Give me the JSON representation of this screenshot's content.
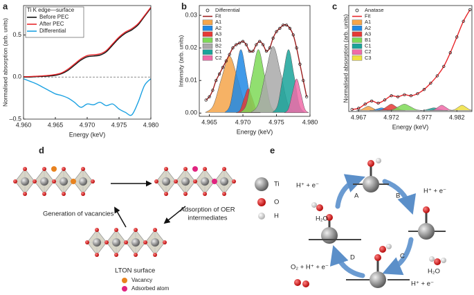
{
  "chart_data": [
    {
      "type": "line",
      "panel": "a",
      "title": "Ti K edge—surface",
      "xlabel": "Energy (keV)",
      "ylabel": "Normalised absorption (arb. units)",
      "x": [
        4.96,
        4.961,
        4.962,
        4.963,
        4.964,
        4.965,
        4.966,
        4.967,
        4.968,
        4.969,
        4.97,
        4.971,
        4.972,
        4.973,
        4.974,
        4.975,
        4.976,
        4.977,
        4.978,
        4.979,
        4.98
      ],
      "xlim": [
        4.96,
        4.98
      ],
      "xticks": [
        {
          "value": 4.96,
          "label": "4.960"
        },
        {
          "value": 4.965,
          "label": "4.965"
        },
        {
          "value": 4.97,
          "label": "4.970"
        },
        {
          "value": 4.975,
          "label": "4.975"
        },
        {
          "value": 4.98,
          "label": "4.980"
        }
      ],
      "ylim": [
        -0.5,
        0.85
      ],
      "yticks": [
        {
          "value": -0.5,
          "label": "–0.5"
        },
        {
          "value": 0,
          "label": "0.0"
        },
        0.5
      ],
      "hline": 0,
      "legend": "upper left",
      "series": [
        {
          "name": "Before PEC",
          "color": "#111111",
          "style": "line",
          "values": [
            0.0,
            0.0,
            0.005,
            0.008,
            0.012,
            0.02,
            0.04,
            0.08,
            0.14,
            0.2,
            0.24,
            0.25,
            0.26,
            0.3,
            0.38,
            0.46,
            0.52,
            0.56,
            0.62,
            0.72,
            0.82
          ]
        },
        {
          "name": "After PEC",
          "color": "#e8262a",
          "style": "line",
          "values": [
            0.005,
            0.006,
            0.01,
            0.014,
            0.02,
            0.03,
            0.05,
            0.095,
            0.155,
            0.215,
            0.255,
            0.265,
            0.275,
            0.315,
            0.395,
            0.475,
            0.535,
            0.575,
            0.635,
            0.73,
            0.83
          ]
        },
        {
          "name": "Differential",
          "color": "#1ba1e2",
          "style": "line",
          "values": [
            -0.02,
            -0.05,
            -0.08,
            -0.12,
            -0.16,
            -0.2,
            -0.22,
            -0.25,
            -0.3,
            -0.36,
            -0.32,
            -0.33,
            -0.3,
            -0.34,
            -0.32,
            -0.38,
            -0.42,
            -0.45,
            -0.3,
            -0.1,
            -0.02
          ]
        }
      ]
    },
    {
      "type": "line",
      "panel": "b",
      "xlabel": "Energy (keV)",
      "ylabel": "Intensity (arb. units)",
      "x": [
        4.9645,
        4.965,
        4.9655,
        4.966,
        4.9665,
        4.967,
        4.9675,
        4.968,
        4.9685,
        4.969,
        4.9695,
        4.97,
        4.9705,
        4.971,
        4.9715,
        4.972,
        4.9725,
        4.973,
        4.9735,
        4.974,
        4.9745,
        4.975,
        4.9755,
        4.976,
        4.9765,
        4.977,
        4.9775,
        4.978,
        4.9785,
        4.979,
        4.9795
      ],
      "xlim": [
        4.9635,
        4.98
      ],
      "xticks": [
        {
          "value": 4.965,
          "label": "4.965"
        },
        {
          "value": 4.97,
          "label": "4.970"
        },
        {
          "value": 4.975,
          "label": "4.975"
        },
        {
          "value": 4.98,
          "label": "4.980"
        }
      ],
      "ylim": [
        -0.001,
        0.033
      ],
      "yticks": [
        {
          "value": 0,
          "label": "0.00"
        },
        0.01,
        0.02,
        0.03
      ],
      "legend": "upper left",
      "series": [
        {
          "name": "Differential",
          "color": "#111111",
          "style": "markers",
          "values": [
            0.004,
            0.005,
            0.007,
            0.01,
            0.012,
            0.014,
            0.016,
            0.018,
            0.02,
            0.021,
            0.0215,
            0.022,
            0.021,
            0.019,
            0.019,
            0.021,
            0.022,
            0.021,
            0.019,
            0.02,
            0.023,
            0.025,
            0.026,
            0.027,
            0.027,
            0.026,
            0.024,
            0.02,
            0.015,
            0.01,
            0.005
          ]
        },
        {
          "name": "Fit",
          "color": "#9b1c1c",
          "style": "line",
          "values": [
            0.004,
            0.005,
            0.007,
            0.01,
            0.012,
            0.014,
            0.016,
            0.018,
            0.02,
            0.021,
            0.0215,
            0.022,
            0.021,
            0.019,
            0.019,
            0.021,
            0.022,
            0.021,
            0.019,
            0.02,
            0.023,
            0.025,
            0.026,
            0.027,
            0.027,
            0.026,
            0.024,
            0.02,
            0.015,
            0.01,
            0.005
          ]
        },
        {
          "name": "A1",
          "color": "#f5a54a",
          "style": "area",
          "x": [
            4.9644,
            4.9656,
            4.9668,
            4.968,
            4.9692,
            4.9704,
            4.9716
          ],
          "values": [
            0.0002,
            0.0024,
            0.0106,
            0.0175,
            0.0106,
            0.0024,
            0.0002
          ]
        },
        {
          "name": "A2",
          "color": "#1e88e5",
          "style": "area",
          "x": [
            4.9673,
            4.9681,
            4.9689,
            4.9697,
            4.9705,
            4.9713,
            4.9721
          ],
          "values": [
            0.0002,
            0.0026,
            0.0118,
            0.0195,
            0.0118,
            0.0026,
            0.0002
          ]
        },
        {
          "name": "A3",
          "color": "#e53935",
          "style": "area",
          "x": [
            4.969,
            4.9696,
            4.9702,
            4.9708,
            4.9714,
            4.972,
            4.9726
          ],
          "values": [
            0.0001,
            0.001,
            0.0046,
            0.0075,
            0.0046,
            0.001,
            0.0001
          ]
        },
        {
          "name": "B1",
          "color": "#7ed957",
          "style": "area",
          "x": [
            4.9696,
            4.9705,
            4.9714,
            4.9723,
            4.9732,
            4.9741,
            4.975
          ],
          "values": [
            0.0002,
            0.0026,
            0.0118,
            0.0195,
            0.0118,
            0.0026,
            0.0002
          ]
        },
        {
          "name": "B2",
          "color": "#a9a9a9",
          "style": "area",
          "x": [
            4.9712,
            4.9723,
            4.9734,
            4.9745,
            4.9756,
            4.9767,
            4.9778
          ],
          "values": [
            0.0002,
            0.0028,
            0.0124,
            0.0205,
            0.0124,
            0.0028,
            0.0002
          ]
        },
        {
          "name": "C1",
          "color": "#1aa39a",
          "style": "area",
          "x": [
            4.9744,
            4.9752,
            4.976,
            4.9768,
            4.9776,
            4.9784,
            4.9792
          ],
          "values": [
            0.0002,
            0.0026,
            0.0118,
            0.0195,
            0.0118,
            0.0026,
            0.0002
          ]
        },
        {
          "name": "C2",
          "color": "#f06ba8",
          "style": "area",
          "x": [
            4.9762,
            4.9768,
            4.9774,
            4.978,
            4.9786,
            4.9792,
            4.9798
          ],
          "values": [
            0.0001,
            0.0014,
            0.0064,
            0.0105,
            0.0064,
            0.0014,
            0.0001
          ]
        }
      ]
    },
    {
      "type": "line",
      "panel": "c",
      "xlabel": "Energy (keV)",
      "ylabel": "Normalised absorption (arb. units)",
      "x": [
        4.966,
        4.967,
        4.968,
        4.969,
        4.97,
        4.971,
        4.972,
        4.973,
        4.974,
        4.975,
        4.976,
        4.977,
        4.978,
        4.979,
        4.98,
        4.981,
        4.982,
        4.983,
        4.984
      ],
      "xlim": [
        4.9655,
        4.9843
      ],
      "xticks": [
        4.967,
        4.972,
        4.977,
        4.982
      ],
      "ylim": [
        -0.01,
        1.0
      ],
      "legend": "upper left",
      "series": [
        {
          "name": "Anatase",
          "color": "#111111",
          "style": "markers",
          "values": [
            0.01,
            0.02,
            0.06,
            0.09,
            0.07,
            0.1,
            0.14,
            0.13,
            0.15,
            0.14,
            0.16,
            0.2,
            0.26,
            0.33,
            0.42,
            0.55,
            0.7,
            0.85,
            0.96
          ]
        },
        {
          "name": "Fit",
          "color": "#e8262a",
          "style": "line",
          "values": [
            0.01,
            0.02,
            0.06,
            0.09,
            0.07,
            0.1,
            0.14,
            0.13,
            0.15,
            0.14,
            0.16,
            0.2,
            0.26,
            0.33,
            0.42,
            0.55,
            0.7,
            0.85,
            0.96
          ]
        },
        {
          "name": "A1",
          "color": "#f5a54a",
          "style": "area",
          "x": [
            4.9667,
            4.9673,
            4.9679,
            4.9685,
            4.9691,
            4.9697,
            4.9703
          ],
          "values": [
            0.0004,
            0.0054,
            0.0243,
            0.04,
            0.0243,
            0.0054,
            0.0004
          ]
        },
        {
          "name": "A2",
          "color": "#1e88e5",
          "style": "area",
          "x": [
            4.9687,
            4.9693,
            4.9699,
            4.9705,
            4.9711,
            4.9717,
            4.9723
          ],
          "values": [
            0.0003,
            0.0034,
            0.0152,
            0.025,
            0.0152,
            0.0034,
            0.0003
          ]
        },
        {
          "name": "A3",
          "color": "#e53935",
          "style": "area",
          "x": [
            4.9699,
            4.9706,
            4.9713,
            4.972,
            4.9727,
            4.9734,
            4.9741
          ],
          "values": [
            0.0007,
            0.0081,
            0.0364,
            0.06,
            0.0364,
            0.0081,
            0.0007
          ]
        },
        {
          "name": "B1",
          "color": "#7ed957",
          "style": "area",
          "x": [
            4.9713,
            4.9722,
            4.9731,
            4.974,
            4.9749,
            4.9758,
            4.9767
          ],
          "values": [
            0.0007,
            0.0081,
            0.0364,
            0.06,
            0.0364,
            0.0081,
            0.0007
          ]
        },
        {
          "name": "C1",
          "color": "#1aa39a",
          "style": "area",
          "x": [
            4.9764,
            4.9771,
            4.9778,
            4.9785,
            4.9792,
            4.9799,
            4.9806
          ],
          "values": [
            0.0003,
            0.0034,
            0.0152,
            0.025,
            0.0152,
            0.0034,
            0.0003
          ]
        },
        {
          "name": "C2",
          "color": "#f06ba8",
          "style": "area",
          "x": [
            4.9779,
            4.9785,
            4.9791,
            4.9797,
            4.9803,
            4.9809,
            4.9815
          ],
          "values": [
            0.0006,
            0.0068,
            0.0304,
            0.05,
            0.0304,
            0.0068,
            0.0006
          ]
        },
        {
          "name": "C3",
          "color": "#f0e040",
          "style": "area",
          "x": [
            4.981,
            4.9816,
            4.9822,
            4.9828,
            4.9834,
            4.984,
            4.9846
          ],
          "values": [
            0.0006,
            0.0068,
            0.0304,
            0.05,
            0.0304,
            0.0068,
            0.0006
          ]
        }
      ]
    }
  ],
  "diagram_d": {
    "label": "d",
    "steps": [
      "Generation of vacancies",
      [
        "Adsorption of OER",
        "intermediates"
      ],
      "LTON surface"
    ],
    "legend": [
      "Vacancy",
      "Adsorbed atom"
    ]
  },
  "diagram_e": {
    "label": "e",
    "legend": [
      "Ti",
      "O",
      "H"
    ],
    "steps": [
      "A",
      "B",
      "C",
      "D"
    ],
    "labels": [
      "H⁺ + e⁻",
      "H₂O",
      "H⁺ + e⁻",
      "H₂O",
      "H⁺ + e⁻",
      "O₂ + H⁺ + e⁻"
    ]
  }
}
